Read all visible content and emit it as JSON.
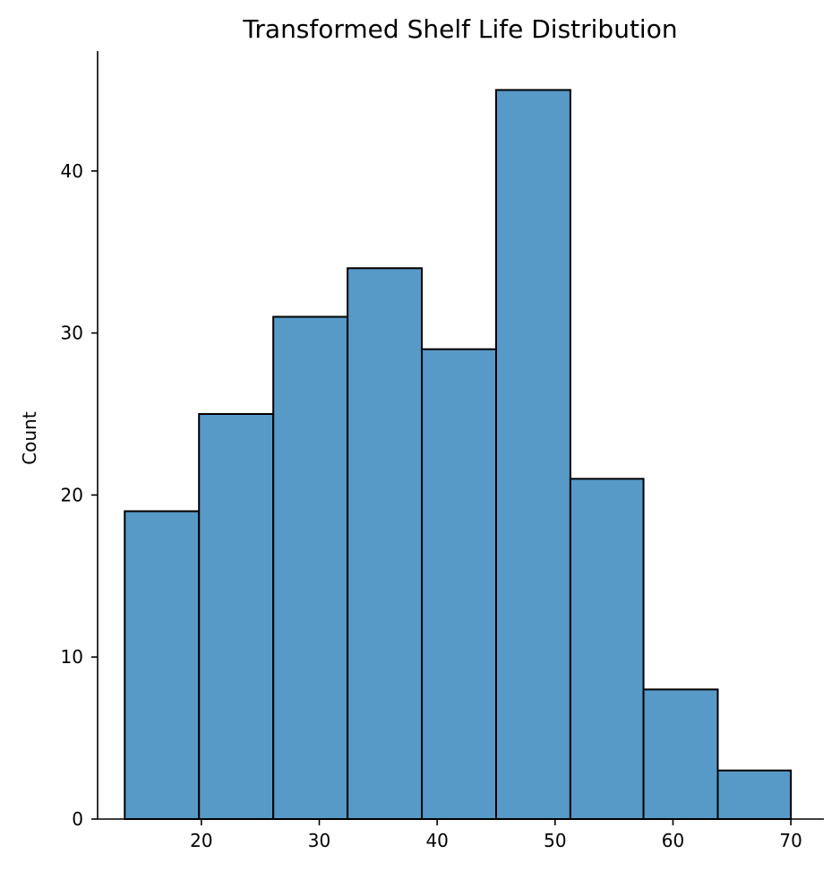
{
  "chart_data": {
    "type": "bar",
    "title": "Transformed Shelf Life Distribution",
    "xlabel": "",
    "ylabel": "Count",
    "bins": [
      {
        "start": 13.5,
        "end": 19.8,
        "count": 19
      },
      {
        "start": 19.8,
        "end": 26.1,
        "count": 25
      },
      {
        "start": 26.1,
        "end": 32.4,
        "count": 31
      },
      {
        "start": 32.4,
        "end": 38.7,
        "count": 34
      },
      {
        "start": 38.7,
        "end": 45.0,
        "count": 29
      },
      {
        "start": 45.0,
        "end": 51.3,
        "count": 45
      },
      {
        "start": 51.3,
        "end": 57.5,
        "count": 21
      },
      {
        "start": 57.5,
        "end": 63.8,
        "count": 8
      },
      {
        "start": 63.8,
        "end": 70.0,
        "count": 3
      }
    ],
    "xlim": [
      11.2,
      72.8
    ],
    "ylim": [
      0,
      47.4
    ],
    "xticks": [
      "20",
      "30",
      "40",
      "50",
      "60",
      "70"
    ],
    "yticks": [
      "0",
      "10",
      "20",
      "30",
      "40"
    ],
    "bar_color": "#5799c7",
    "edge_color": "#000000",
    "grid": false
  }
}
